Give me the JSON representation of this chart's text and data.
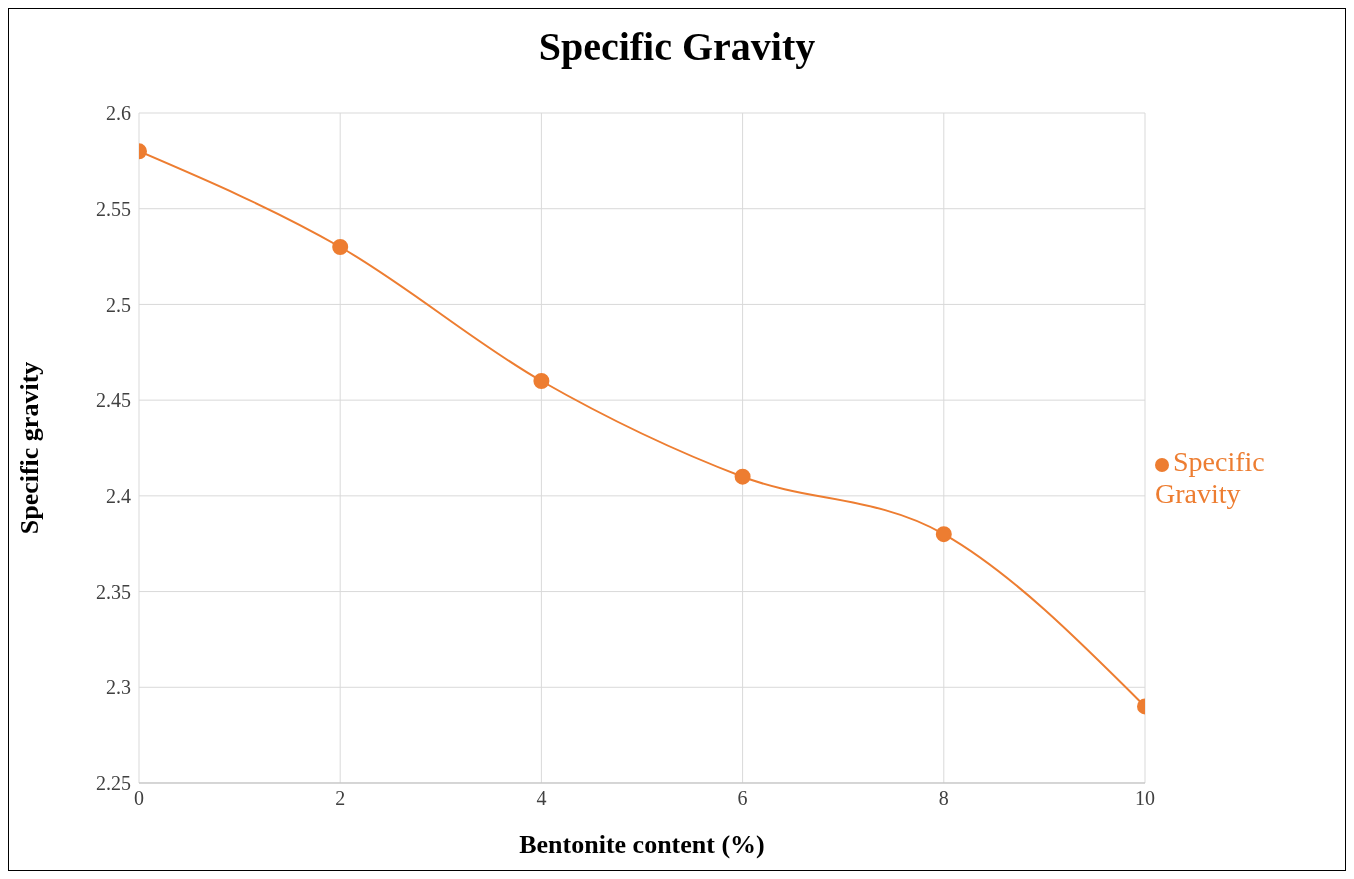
{
  "chart_data": {
    "type": "line",
    "title": "Specific Gravity",
    "xlabel": "Bentonite content (%)",
    "ylabel": "Specific gravity",
    "x": [
      0,
      2,
      4,
      6,
      8,
      10
    ],
    "series": [
      {
        "name": "Specific Gravity",
        "color": "#ed7d31",
        "values": [
          2.58,
          2.53,
          2.46,
          2.41,
          2.38,
          2.29
        ]
      }
    ],
    "xlim": [
      0,
      10
    ],
    "xticks": [
      0,
      2,
      4,
      6,
      8,
      10
    ],
    "ylim": [
      2.25,
      2.6
    ],
    "yticks": [
      2.25,
      2.3,
      2.35,
      2.4,
      2.45,
      2.5,
      2.55,
      2.6
    ],
    "grid": true,
    "legend": "right",
    "marker": "circle",
    "line_style": "solid"
  }
}
